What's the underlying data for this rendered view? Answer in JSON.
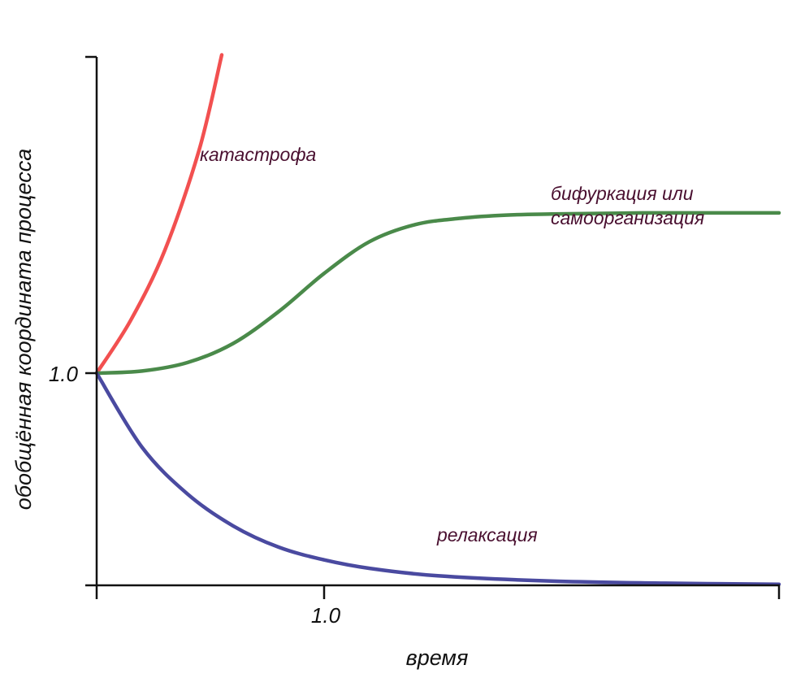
{
  "chart_data": {
    "type": "line",
    "xlabel": "время",
    "ylabel": "обобщённая координата процесса",
    "x_ticks": [
      "1.0"
    ],
    "y_ticks": [
      "1.0"
    ],
    "xlim": [
      0,
      3
    ],
    "ylim": [
      0,
      2.3
    ],
    "grid": false,
    "series": [
      {
        "name": "катастрофа",
        "color": "#f25050",
        "x": [
          0,
          0.15,
          0.3,
          0.45,
          0.55
        ],
        "y": [
          1.0,
          1.25,
          1.58,
          2.05,
          2.5
        ]
      },
      {
        "name": "бифуркация или самоорганизация",
        "color": "#4a8a4a",
        "x": [
          0,
          0.2,
          0.4,
          0.6,
          0.8,
          1.0,
          1.2,
          1.4,
          1.6,
          1.8,
          2.0,
          2.4,
          3.0
        ],
        "y": [
          1.0,
          1.01,
          1.05,
          1.14,
          1.29,
          1.47,
          1.62,
          1.7,
          1.73,
          1.745,
          1.75,
          1.755,
          1.755
        ]
      },
      {
        "name": "релаксация",
        "color": "#4a4aa0",
        "x": [
          0,
          0.2,
          0.4,
          0.6,
          0.8,
          1.0,
          1.2,
          1.5,
          2.0,
          2.5,
          3.0
        ],
        "y": [
          1.0,
          0.65,
          0.43,
          0.28,
          0.18,
          0.12,
          0.08,
          0.045,
          0.02,
          0.01,
          0.005
        ]
      }
    ],
    "annotations": [
      {
        "text": "катастрофа",
        "series": 0
      },
      {
        "text": "бифуркация или",
        "series": 1
      },
      {
        "text": "самоорганизация",
        "series": 1
      },
      {
        "text": "релаксация",
        "series": 2
      }
    ]
  }
}
